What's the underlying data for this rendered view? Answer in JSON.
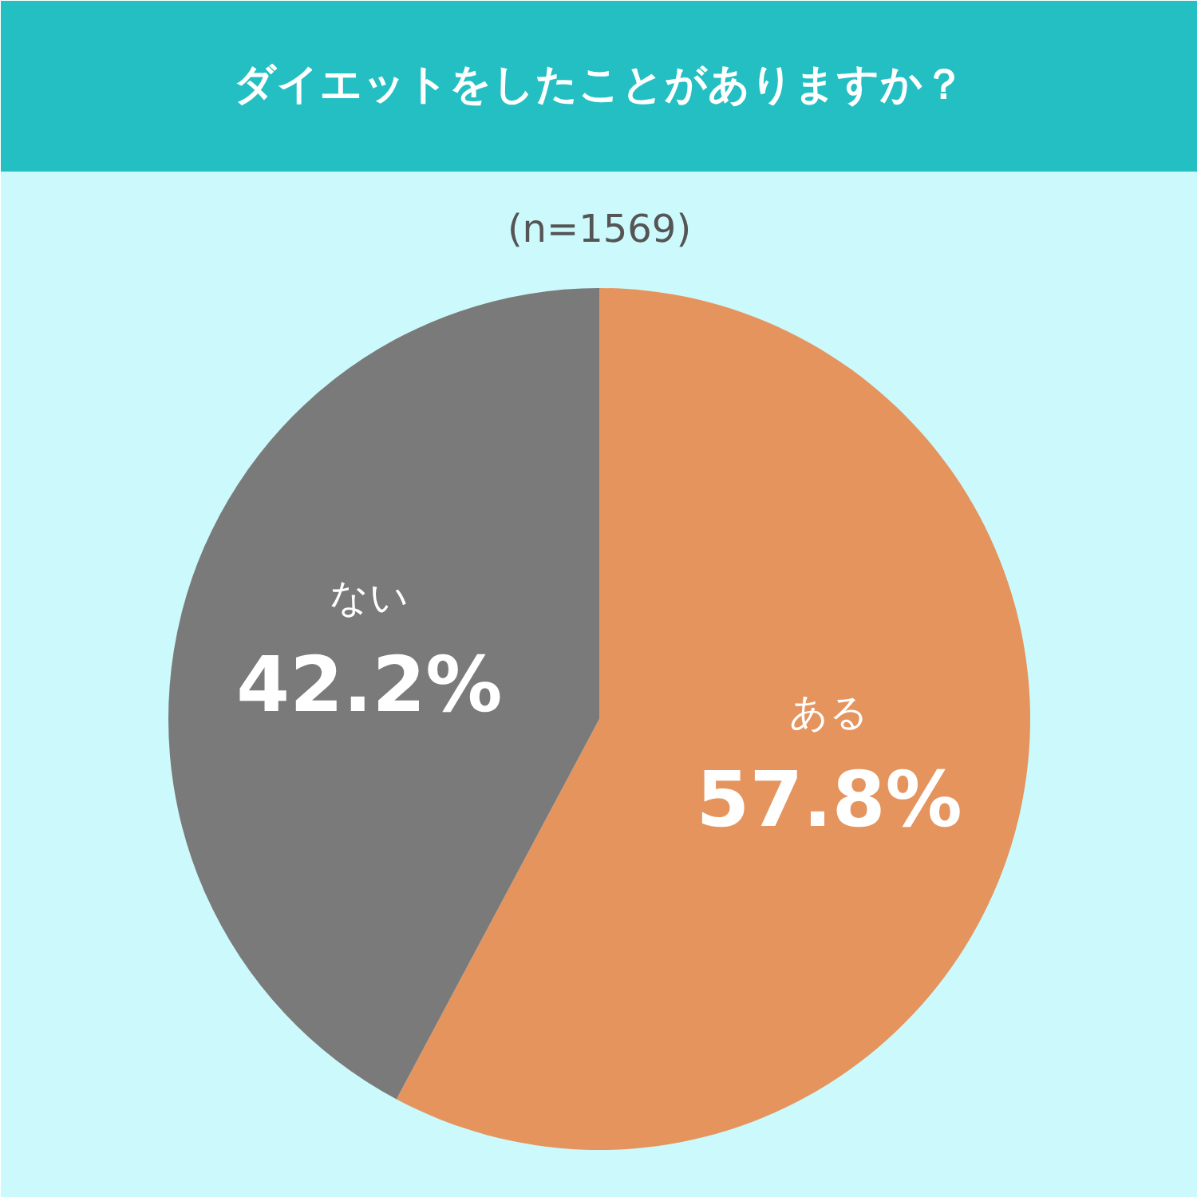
{
  "chart_data": {
    "type": "pie",
    "title": "ダイエットをしたことがありますか？",
    "subtitle": "(n=1569)",
    "categories": [
      "ある",
      "ない"
    ],
    "values": [
      57.8,
      42.2
    ],
    "colors": [
      "#e5945e",
      "#7a7a7a"
    ],
    "value_labels": [
      "57.8%",
      "42.2%"
    ]
  }
}
